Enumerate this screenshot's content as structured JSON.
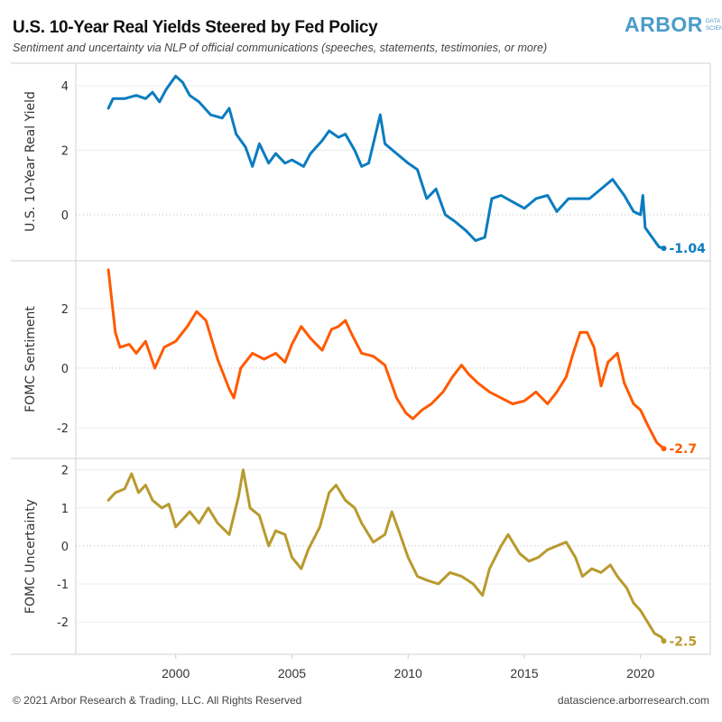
{
  "header": {
    "title": "U.S. 10-Year Real Yields Steered by Fed Policy",
    "subtitle": "Sentiment and uncertainty via NLP of official communications (speeches, statements, testimonies, or more)",
    "logo_main": "ARBOR",
    "logo_sub_1": "DATA",
    "logo_sub_2": "SCIENCE"
  },
  "footer": {
    "copyright": "© 2021 Arbor Research & Trading, LLC. All Rights Reserved",
    "website": "datascience.arborresearch.com"
  },
  "chart_data": [
    {
      "type": "line",
      "title": "U.S. 10-Year Real Yields Steered by Fed Policy",
      "ylabel": "U.S. 10-Year Real Yield",
      "xlabel": "",
      "color": "#0b7cbf",
      "ylim": [
        -1.4,
        4.7
      ],
      "yticks": [
        0,
        2,
        4
      ],
      "ytick_labels": [
        "0",
        "2",
        "4"
      ],
      "grid": true,
      "end_label": "-1.04",
      "x": [
        1997.1,
        1997.3,
        1997.8,
        1998.3,
        1998.7,
        1999.0,
        1999.3,
        1999.6,
        2000.0,
        2000.3,
        2000.6,
        2001.0,
        2001.5,
        2002.0,
        2002.3,
        2002.6,
        2003.0,
        2003.3,
        2003.6,
        2004.0,
        2004.3,
        2004.7,
        2005.0,
        2005.5,
        2005.8,
        2006.3,
        2006.6,
        2007.0,
        2007.3,
        2007.7,
        2008.0,
        2008.3,
        2008.8,
        2009.0,
        2009.5,
        2010.0,
        2010.4,
        2010.8,
        2011.2,
        2011.6,
        2012.0,
        2012.5,
        2012.9,
        2013.3,
        2013.6,
        2014.0,
        2014.5,
        2015.0,
        2015.5,
        2016.0,
        2016.4,
        2016.9,
        2017.3,
        2017.8,
        2018.3,
        2018.8,
        2019.3,
        2019.7,
        2020.0,
        2020.1,
        2020.2,
        2020.5,
        2020.8,
        2021.0
      ],
      "values": [
        3.3,
        3.6,
        3.6,
        3.7,
        3.6,
        3.8,
        3.5,
        3.9,
        4.3,
        4.1,
        3.7,
        3.5,
        3.1,
        3.0,
        3.3,
        2.5,
        2.1,
        1.5,
        2.2,
        1.6,
        1.9,
        1.6,
        1.7,
        1.5,
        1.9,
        2.3,
        2.6,
        2.4,
        2.5,
        2.0,
        1.5,
        1.6,
        3.1,
        2.2,
        1.9,
        1.6,
        1.4,
        0.5,
        0.8,
        0.0,
        -0.2,
        -0.5,
        -0.8,
        -0.7,
        0.5,
        0.6,
        0.4,
        0.2,
        0.5,
        0.6,
        0.1,
        0.5,
        0.5,
        0.5,
        0.8,
        1.1,
        0.6,
        0.1,
        0.0,
        0.6,
        -0.4,
        -0.7,
        -1.0,
        -1.04
      ]
    },
    {
      "type": "line",
      "ylabel": "FOMC Sentiment",
      "xlabel": "",
      "color": "#ff5a00",
      "ylim": [
        -3.0,
        3.6
      ],
      "yticks": [
        -2,
        0,
        2
      ],
      "ytick_labels": [
        "-2",
        "0",
        "2"
      ],
      "grid": true,
      "end_label": "-2.7",
      "x": [
        1997.1,
        1997.4,
        1997.6,
        1998.0,
        1998.3,
        1998.7,
        1999.1,
        1999.5,
        2000.0,
        2000.5,
        2000.9,
        2001.3,
        2001.8,
        2002.3,
        2002.5,
        2002.8,
        2003.3,
        2003.8,
        2004.3,
        2004.7,
        2005.0,
        2005.4,
        2005.8,
        2006.3,
        2006.7,
        2007.0,
        2007.3,
        2007.6,
        2008.0,
        2008.5,
        2009.0,
        2009.5,
        2009.9,
        2010.2,
        2010.6,
        2011.0,
        2011.5,
        2011.9,
        2012.3,
        2012.6,
        2013.0,
        2013.5,
        2014.0,
        2014.5,
        2015.0,
        2015.5,
        2016.0,
        2016.4,
        2016.8,
        2017.1,
        2017.4,
        2017.7,
        2018.0,
        2018.3,
        2018.6,
        2019.0,
        2019.3,
        2019.7,
        2020.0,
        2020.3,
        2020.7,
        2021.0
      ],
      "values": [
        3.3,
        1.2,
        0.7,
        0.8,
        0.5,
        0.9,
        0.0,
        0.7,
        0.9,
        1.4,
        1.9,
        1.6,
        0.3,
        -0.7,
        -1.0,
        0.0,
        0.5,
        0.3,
        0.5,
        0.2,
        0.8,
        1.4,
        1.0,
        0.6,
        1.3,
        1.4,
        1.6,
        1.1,
        0.5,
        0.4,
        0.1,
        -1.0,
        -1.5,
        -1.7,
        -1.4,
        -1.2,
        -0.8,
        -0.3,
        0.1,
        -0.2,
        -0.5,
        -0.8,
        -1.0,
        -1.2,
        -1.1,
        -0.8,
        -1.2,
        -0.8,
        -0.3,
        0.5,
        1.2,
        1.2,
        0.7,
        -0.6,
        0.2,
        0.5,
        -0.5,
        -1.2,
        -1.4,
        -1.9,
        -2.5,
        -2.7
      ]
    },
    {
      "type": "line",
      "ylabel": "FOMC Uncertainty",
      "xlabel": "",
      "color": "#b89a2e",
      "ylim": [
        -2.85,
        2.3
      ],
      "yticks": [
        -2,
        -1,
        0,
        1,
        2
      ],
      "ytick_labels": [
        "-2",
        "-1",
        "0",
        "1",
        "2"
      ],
      "grid": true,
      "end_label": "-2.5",
      "x": [
        1997.1,
        1997.4,
        1997.8,
        1998.1,
        1998.4,
        1998.7,
        1999.0,
        1999.4,
        1999.7,
        2000.0,
        2000.3,
        2000.6,
        2001.0,
        2001.4,
        2001.8,
        2002.3,
        2002.7,
        2002.9,
        2003.2,
        2003.6,
        2004.0,
        2004.3,
        2004.7,
        2005.0,
        2005.4,
        2005.7,
        2006.2,
        2006.6,
        2006.9,
        2007.3,
        2007.7,
        2008.0,
        2008.5,
        2009.0,
        2009.3,
        2009.6,
        2010.0,
        2010.4,
        2010.8,
        2011.3,
        2011.8,
        2012.3,
        2012.8,
        2013.2,
        2013.5,
        2014.0,
        2014.3,
        2014.8,
        2015.2,
        2015.6,
        2016.0,
        2016.4,
        2016.8,
        2017.2,
        2017.5,
        2017.9,
        2018.3,
        2018.7,
        2019.0,
        2019.4,
        2019.7,
        2020.0,
        2020.3,
        2020.6,
        2020.9,
        2021.0
      ],
      "values": [
        1.2,
        1.4,
        1.5,
        1.9,
        1.4,
        1.6,
        1.2,
        1.0,
        1.1,
        0.5,
        0.7,
        0.9,
        0.6,
        1.0,
        0.6,
        0.3,
        1.3,
        2.0,
        1.0,
        0.8,
        0.0,
        0.4,
        0.3,
        -0.3,
        -0.6,
        -0.1,
        0.5,
        1.4,
        1.6,
        1.2,
        1.0,
        0.6,
        0.1,
        0.3,
        0.9,
        0.4,
        -0.3,
        -0.8,
        -0.9,
        -1.0,
        -0.7,
        -0.8,
        -1.0,
        -1.3,
        -0.6,
        0.0,
        0.3,
        -0.2,
        -0.4,
        -0.3,
        -0.1,
        0.0,
        0.1,
        -0.3,
        -0.8,
        -0.6,
        -0.7,
        -0.5,
        -0.8,
        -1.1,
        -1.5,
        -1.7,
        -2.0,
        -2.3,
        -2.4,
        -2.5
      ]
    }
  ],
  "x_axis": {
    "xlim": [
      1995.7,
      2023.0
    ],
    "ticks": [
      2000,
      2005,
      2010,
      2015,
      2020
    ],
    "tick_labels": [
      "2000",
      "2005",
      "2010",
      "2015",
      "2020"
    ]
  }
}
